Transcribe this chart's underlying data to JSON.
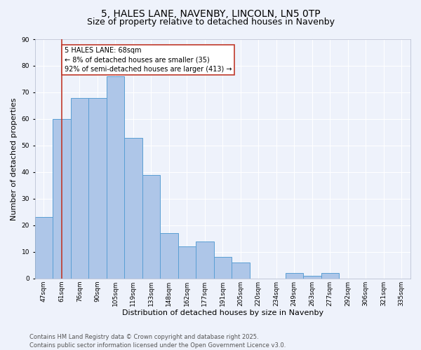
{
  "title1": "5, HALES LANE, NAVENBY, LINCOLN, LN5 0TP",
  "title2": "Size of property relative to detached houses in Navenby",
  "xlabel": "Distribution of detached houses by size in Navenby",
  "ylabel": "Number of detached properties",
  "categories": [
    "47sqm",
    "61sqm",
    "76sqm",
    "90sqm",
    "105sqm",
    "119sqm",
    "133sqm",
    "148sqm",
    "162sqm",
    "177sqm",
    "191sqm",
    "205sqm",
    "220sqm",
    "234sqm",
    "249sqm",
    "263sqm",
    "277sqm",
    "292sqm",
    "306sqm",
    "321sqm",
    "335sqm"
  ],
  "values": [
    23,
    60,
    68,
    68,
    76,
    53,
    39,
    17,
    12,
    14,
    8,
    6,
    0,
    0,
    2,
    1,
    2,
    0,
    0,
    0,
    0
  ],
  "bar_color": "#aec6e8",
  "bar_edge_color": "#5a9fd4",
  "vline_x_index": 1,
  "vline_color": "#c0392b",
  "annotation_text": "5 HALES LANE: 68sqm\n← 8% of detached houses are smaller (35)\n92% of semi-detached houses are larger (413) →",
  "annotation_box_color": "#ffffff",
  "annotation_box_edge_color": "#c0392b",
  "ylim": [
    0,
    90
  ],
  "yticks": [
    0,
    10,
    20,
    30,
    40,
    50,
    60,
    70,
    80,
    90
  ],
  "footer": "Contains HM Land Registry data © Crown copyright and database right 2025.\nContains public sector information licensed under the Open Government Licence v3.0.",
  "background_color": "#eef2fb",
  "grid_color": "#ffffff",
  "title1_fontsize": 10,
  "title2_fontsize": 9,
  "ylabel_fontsize": 8,
  "xlabel_fontsize": 8,
  "tick_fontsize": 6.5,
  "annotation_fontsize": 7,
  "footer_fontsize": 6
}
